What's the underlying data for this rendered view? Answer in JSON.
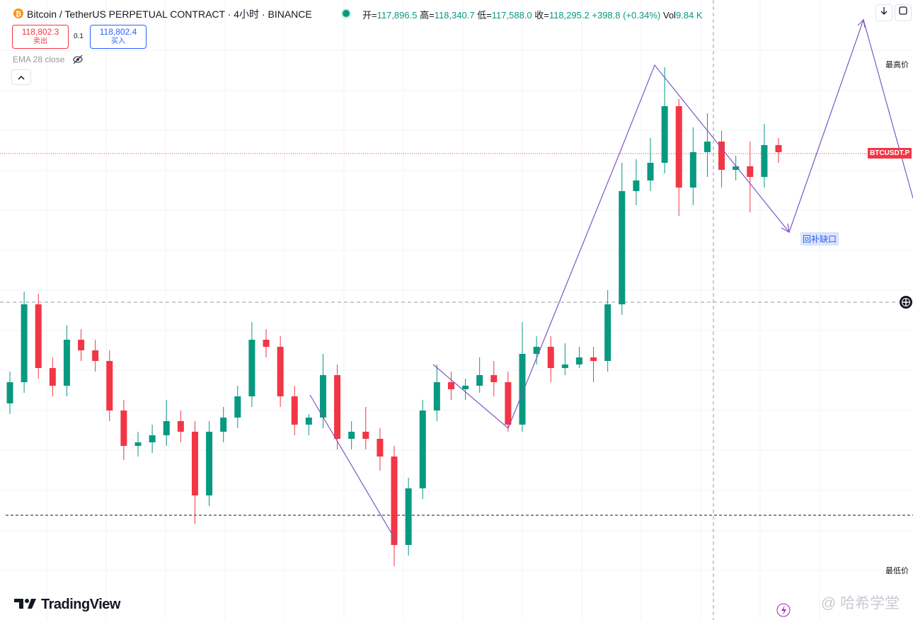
{
  "header": {
    "symbol": "Bitcoin / TetherUS PERPETUAL CONTRACT · 4小时 · BINANCE",
    "open_label": "开=",
    "open": "117,896.5",
    "high_label": "高=",
    "high": "118,340.7",
    "low_label": "低=",
    "low": "117,588.0",
    "close_label": "收=",
    "close": "118,295.2",
    "change": "+398.8 (+0.34%)",
    "vol_label": "Vol",
    "vol": "9.84 K"
  },
  "trade": {
    "sell_price": "118,802.3",
    "sell_label": "卖出",
    "spread": "0.1",
    "buy_price": "118,802.4",
    "buy_label": "买入"
  },
  "indicator": "EMA 28 close",
  "labels": {
    "highest": "最高价",
    "lowest": "最低价",
    "ticker": "BTCUSDT.P",
    "annotation": "回补缺口"
  },
  "brand": "TradingView",
  "watermark": "@ 哈希学堂",
  "chart_data": {
    "type": "candlestick",
    "up_color": "#089981",
    "down_color": "#f23645",
    "ylim": [
      101820,
      123720
    ],
    "open": [
      109470,
      110220,
      112970,
      110720,
      110095,
      111720,
      111345,
      110970,
      109220,
      107970,
      108095,
      108345,
      108845,
      108470,
      106220,
      108470,
      108970,
      109720,
      111720,
      111470,
      109720,
      108720,
      108970,
      110470,
      108220,
      108470,
      108220,
      107595,
      104470,
      106470,
      109220,
      110220,
      109970,
      110095,
      110470,
      110220,
      108720,
      111220,
      111470,
      110720,
      110845,
      111095,
      110970,
      112970,
      116970,
      117345,
      117970,
      119970,
      117095,
      118345,
      118720,
      117720,
      117845,
      117470,
      118595
    ],
    "high": [
      110595,
      113420,
      113345,
      111095,
      112220,
      112095,
      111720,
      111345,
      109595,
      108470,
      108720,
      109595,
      109220,
      108845,
      108845,
      109345,
      110095,
      112345,
      112095,
      111845,
      110095,
      109095,
      111220,
      110845,
      108845,
      109345,
      108595,
      107970,
      106845,
      109595,
      110845,
      110595,
      110345,
      111095,
      110970,
      110595,
      112345,
      111845,
      111845,
      111595,
      111470,
      111470,
      113470,
      117970,
      118095,
      118845,
      121345,
      120220,
      119220,
      119720,
      119095,
      118220,
      118720,
      119345,
      118845
    ],
    "low": [
      109095,
      109845,
      110345,
      109720,
      109720,
      110970,
      110595,
      108845,
      107470,
      107595,
      107720,
      107970,
      108095,
      105220,
      105845,
      108095,
      108595,
      109345,
      111095,
      109345,
      108345,
      108345,
      108595,
      107845,
      107845,
      107845,
      107095,
      103720,
      104095,
      106095,
      108845,
      109595,
      109595,
      109845,
      109720,
      108470,
      108470,
      110845,
      110220,
      110470,
      110720,
      110220,
      110595,
      112595,
      116470,
      116970,
      117595,
      116095,
      116470,
      117470,
      117095,
      117345,
      116220,
      117095,
      117970
    ],
    "close": [
      110220,
      112970,
      110720,
      110095,
      111720,
      111345,
      110970,
      109220,
      107970,
      108095,
      108345,
      108845,
      108470,
      106220,
      108470,
      108970,
      109720,
      111720,
      111470,
      109720,
      108720,
      108970,
      110470,
      108220,
      108470,
      108220,
      107595,
      104470,
      106470,
      109220,
      110220,
      109970,
      110095,
      110470,
      110220,
      108720,
      111220,
      111470,
      110720,
      110845,
      111095,
      110970,
      112970,
      116970,
      117345,
      117970,
      119970,
      117095,
      118345,
      118720,
      117720,
      117845,
      117470,
      118595,
      118345
    ]
  }
}
